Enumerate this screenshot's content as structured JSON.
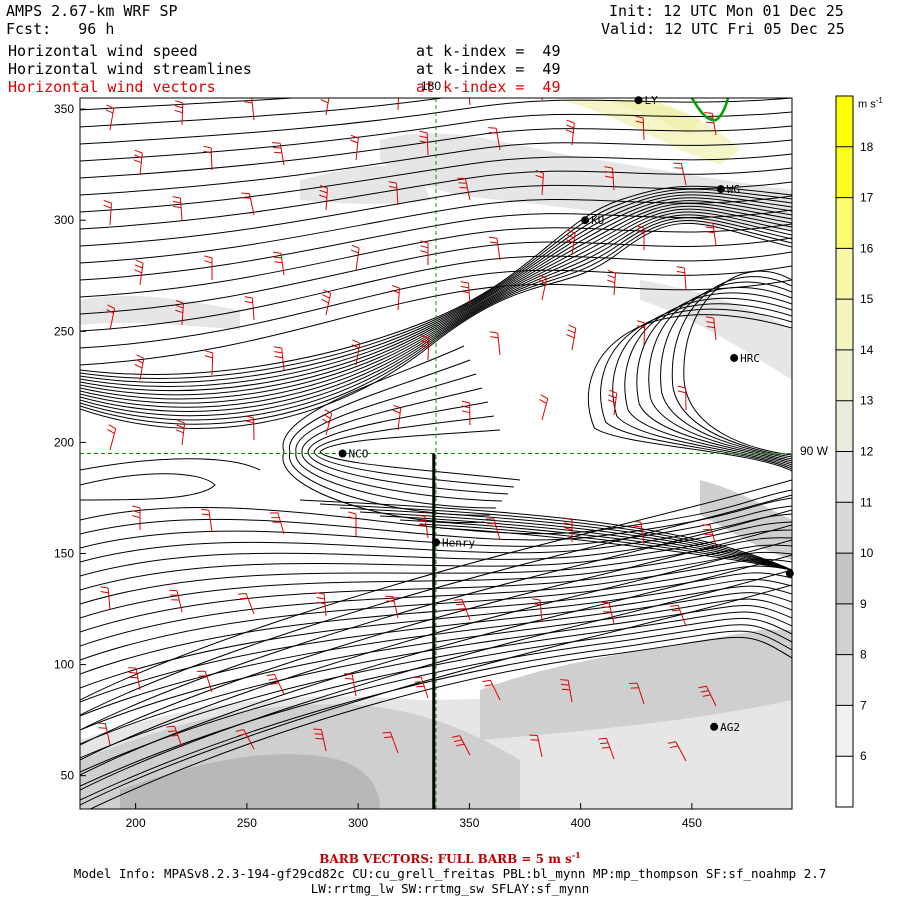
{
  "header": {
    "model": "AMPS 2.67-km WRF SP",
    "forecast": "Fcst:   96 h",
    "init": "Init: 12 UTC Mon 01 Dec 25",
    "valid": "Valid: 12 UTC Fri 05 Dec 25",
    "fields": [
      {
        "name": "Horizontal wind speed",
        "level": "at k-index =  49",
        "color": "#000000"
      },
      {
        "name": "Horizontal wind streamlines",
        "level": "at k-index =  49",
        "color": "#000000"
      },
      {
        "name": "Horizontal wind vectors",
        "level": "at k-index =  49",
        "color": "#e00000"
      }
    ]
  },
  "map": {
    "x_axis": {
      "min": 175,
      "max": 495,
      "ticks": [
        200,
        250,
        300,
        350,
        400,
        450
      ]
    },
    "y_axis": {
      "min": 35,
      "max": 355,
      "ticks": [
        50,
        100,
        150,
        200,
        250,
        300,
        350
      ]
    },
    "grid_labels": {
      "meridian_top": "180",
      "parallel_right": "90 W"
    },
    "meridian_x": 335,
    "parallel_y": 195,
    "transect": {
      "x": 334,
      "y_from": 35,
      "y_to": 195
    },
    "stations": [
      {
        "name": "NCO",
        "x": 293,
        "y": 195
      },
      {
        "name": "Henry",
        "x": 335,
        "y": 155
      },
      {
        "name": "HRC",
        "x": 469,
        "y": 238
      },
      {
        "name": "AG2",
        "x": 460,
        "y": 72
      },
      {
        "name": "KU",
        "x": 402,
        "y": 300
      },
      {
        "name": "WG",
        "x": 463,
        "y": 314
      },
      {
        "name": "LY",
        "x": 426,
        "y": 354
      },
      {
        "name": "",
        "x": 494,
        "y": 141
      }
    ],
    "colors": {
      "streamline": "#000000",
      "barb": "#e00000",
      "grid": "#009900",
      "coast": "#00a000",
      "shade_light": "#e6e6e6",
      "shade_mid": "#cfcfcf",
      "shade_dark": "#b8b8b8",
      "shade_yellow": "#f5f5c8"
    }
  },
  "colorbar": {
    "unit": "m s-1",
    "levels": [
      6,
      7,
      8,
      9,
      10,
      11,
      12,
      13,
      14,
      15,
      16,
      17,
      18
    ],
    "colors": [
      "#ffffff",
      "#f0f0f0",
      "#e0e0e0",
      "#d0d0d0",
      "#c4c4c4",
      "#d8d8d8",
      "#e6e6e6",
      "#ececdc",
      "#f0f0d0",
      "#f4f4c0",
      "#f8f8a8",
      "#fbfb70",
      "#fcfc20",
      "#ffff00"
    ]
  },
  "footer": {
    "barb_note": "BARB VECTORS:  FULL BARB = 5 m s",
    "barb_note_exp": "-1",
    "model_info": "Model Info: MPASv8.2.3-194-gf29cd82c CU:cu_grell_freitas PBL:bl_mynn MP:mp_thompson SF:sf_noahmp 2.7",
    "model_info_2": "LW:rrtmg_lw SW:rrtmg_sw SFLAY:sf_mynn"
  }
}
